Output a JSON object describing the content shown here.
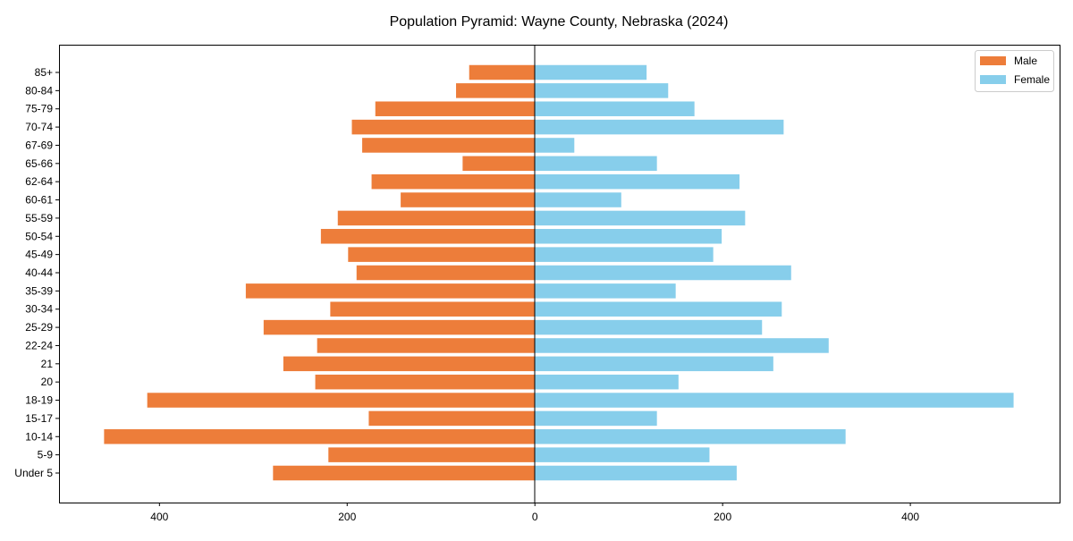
{
  "chart_data": {
    "type": "bar",
    "orientation": "horizontal",
    "title": "Population Pyramid: Wayne County, Nebraska (2024)",
    "xlabel": "",
    "ylabel": "",
    "xlim": [
      -507,
      559
    ],
    "xticks": [
      -400,
      -200,
      0,
      200,
      400
    ],
    "xtick_labels": [
      "400",
      "200",
      "0",
      "200",
      "400"
    ],
    "grid": false,
    "legend_position": "top-right",
    "categories": [
      "Under 5",
      "5-9",
      "10-14",
      "15-17",
      "18-19",
      "20",
      "21",
      "22-24",
      "25-29",
      "30-34",
      "35-39",
      "40-44",
      "45-49",
      "50-54",
      "55-59",
      "60-61",
      "62-64",
      "65-66",
      "67-69",
      "70-74",
      "75-79",
      "80-84",
      "85+"
    ],
    "series": [
      {
        "name": "Male",
        "color": "#ED7D3A",
        "values": [
          279,
          220,
          459,
          177,
          413,
          234,
          268,
          232,
          289,
          218,
          308,
          190,
          199,
          228,
          210,
          143,
          174,
          77,
          184,
          195,
          170,
          84,
          70
        ]
      },
      {
        "name": "Female",
        "color": "#87CEEB",
        "values": [
          215,
          186,
          331,
          130,
          510,
          153,
          254,
          313,
          242,
          263,
          150,
          273,
          190,
          199,
          224,
          92,
          218,
          130,
          42,
          265,
          170,
          142,
          119
        ]
      }
    ]
  }
}
